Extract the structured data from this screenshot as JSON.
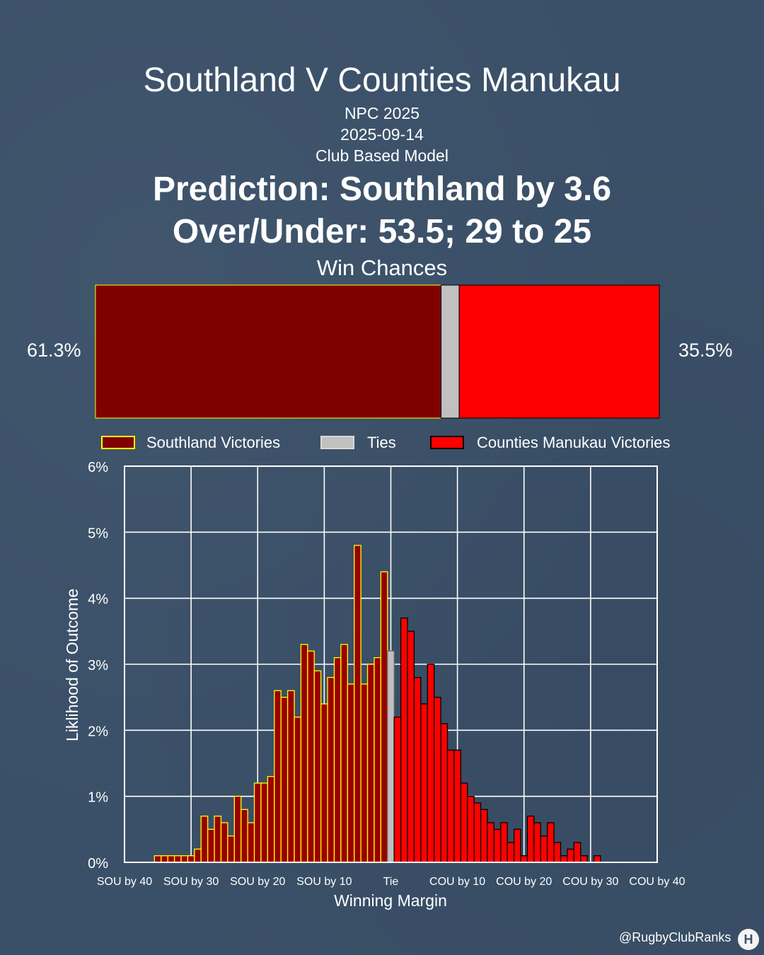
{
  "header": {
    "title": "Southland V Counties Manukau",
    "competition": "NPC 2025",
    "date": "2025-09-14",
    "model": "Club Based Model",
    "prediction": "Prediction: Southland by 3.6",
    "over_under": "Over/Under: 53.5; 29 to 25"
  },
  "win_chances": {
    "title": "Win Chances",
    "home_pct": 61.3,
    "tie_pct": 3.2,
    "away_pct": 35.5,
    "home_label": "61.3%",
    "away_label": "35.5%"
  },
  "legend": {
    "home": "Southland Victories",
    "tie": "Ties",
    "away": "Counties Manukau Victories"
  },
  "colors": {
    "background": "#3a5068",
    "home_bar": "#800000",
    "home_hist": "#990000",
    "home_edge": "#ffff00",
    "tie": "#c0c0c0",
    "away": "#ff0000",
    "away_edge": "#000000"
  },
  "chart_data": {
    "type": "bar",
    "xlabel": "Winning Margin",
    "ylabel": "Liklihood of Outcome",
    "xlim": [
      -40,
      40
    ],
    "ylim": [
      0,
      6
    ],
    "xticks": [
      -40,
      -30,
      -20,
      -10,
      0,
      10,
      20,
      30,
      40
    ],
    "xtick_labels": [
      "SOU by 40",
      "SOU by 30",
      "SOU by 20",
      "SOU by 10",
      "Tie",
      "COU by 10",
      "COU by 20",
      "COU by 30",
      "COU by 40"
    ],
    "yticks": [
      0,
      1,
      2,
      3,
      4,
      5,
      6
    ],
    "ytick_labels": [
      "0%",
      "1%",
      "2%",
      "3%",
      "4%",
      "5%",
      "6%"
    ],
    "grid": true,
    "series": [
      {
        "name": "Southland Victories",
        "x": [
          -35,
          -34,
          -33,
          -32,
          -31,
          -30,
          -29,
          -28,
          -27,
          -26,
          -25,
          -24,
          -23,
          -22,
          -21,
          -20,
          -19,
          -18,
          -17,
          -16,
          -15,
          -14,
          -13,
          -12,
          -11,
          -10,
          -9,
          -8,
          -7,
          -6,
          -5,
          -4,
          -3,
          -2,
          -1
        ],
        "values": [
          0.1,
          0.1,
          0.1,
          0.1,
          0.1,
          0.1,
          0.2,
          0.7,
          0.5,
          0.7,
          0.6,
          0.4,
          1.0,
          0.8,
          0.6,
          1.2,
          1.2,
          1.3,
          2.6,
          2.5,
          2.6,
          2.2,
          3.3,
          3.2,
          2.9,
          2.4,
          2.8,
          3.1,
          3.3,
          2.7,
          4.8,
          2.7,
          3.0,
          3.1,
          4.4
        ]
      },
      {
        "name": "Ties",
        "x": [
          0
        ],
        "values": [
          3.2
        ]
      },
      {
        "name": "Counties Manukau Victories",
        "x": [
          1,
          2,
          3,
          4,
          5,
          6,
          7,
          8,
          9,
          10,
          11,
          12,
          13,
          14,
          15,
          16,
          17,
          18,
          19,
          20,
          21,
          22,
          23,
          24,
          25,
          26,
          27,
          28,
          29
        ],
        "values": [
          2.2,
          3.7,
          3.5,
          2.8,
          2.4,
          3.0,
          2.5,
          2.1,
          1.7,
          1.7,
          1.2,
          1.0,
          0.9,
          0.8,
          0.6,
          0.5,
          0.6,
          0.3,
          0.5,
          0.1,
          0.7,
          0.6,
          0.4,
          0.6,
          0.3,
          0.1,
          0.2,
          0.3,
          0.1
        ]
      }
    ],
    "extra_series_tail": {
      "x": [
        31
      ],
      "values": [
        0.1
      ]
    }
  },
  "footer": {
    "handle": "@RugbyClubRanks",
    "logo_glyph": "H"
  }
}
